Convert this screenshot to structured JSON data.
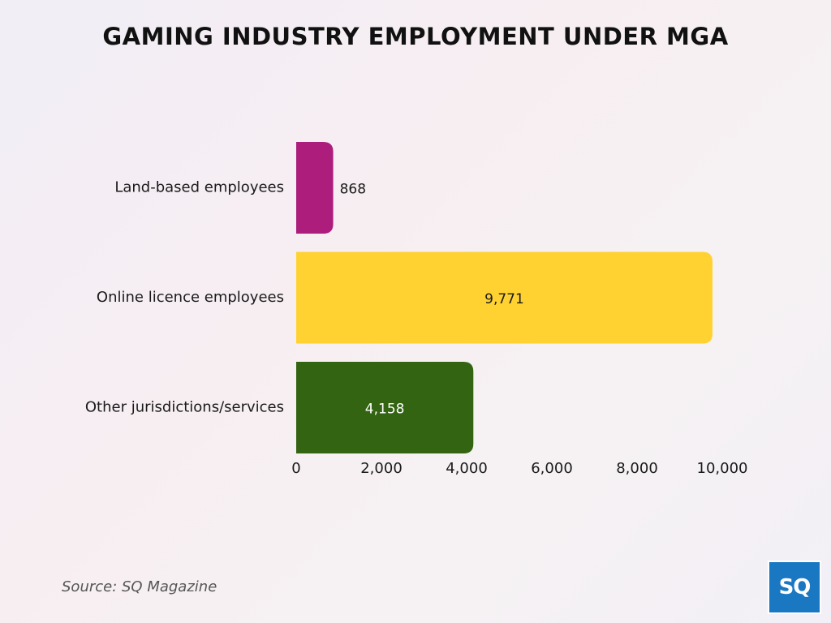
{
  "chart_data": {
    "type": "bar",
    "orientation": "horizontal",
    "title": "GAMING INDUSTRY EMPLOYMENT UNDER MGA",
    "categories": [
      "Land-based employees",
      "Online licence employees",
      "Other jurisdictions/services"
    ],
    "values": [
      868,
      9771,
      4158
    ],
    "value_labels": [
      "868",
      "9,771",
      "4,158"
    ],
    "bar_colors": [
      "#ac1d7c",
      "#ffd232",
      "#336412"
    ],
    "value_label_colors": [
      "#1a1a1a",
      "#1a1a1a",
      "#ffffff"
    ],
    "xlim": [
      0,
      10000
    ],
    "xticks": [
      0,
      2000,
      4000,
      6000,
      8000,
      10000
    ],
    "xtick_labels": [
      "0",
      "2,000",
      "4,000",
      "6,000",
      "8,000",
      "10,000"
    ],
    "xlabel": "",
    "ylabel": "",
    "grid": false,
    "legend": "none"
  },
  "source_text": "Source: SQ Magazine",
  "logo_text": "SQ"
}
